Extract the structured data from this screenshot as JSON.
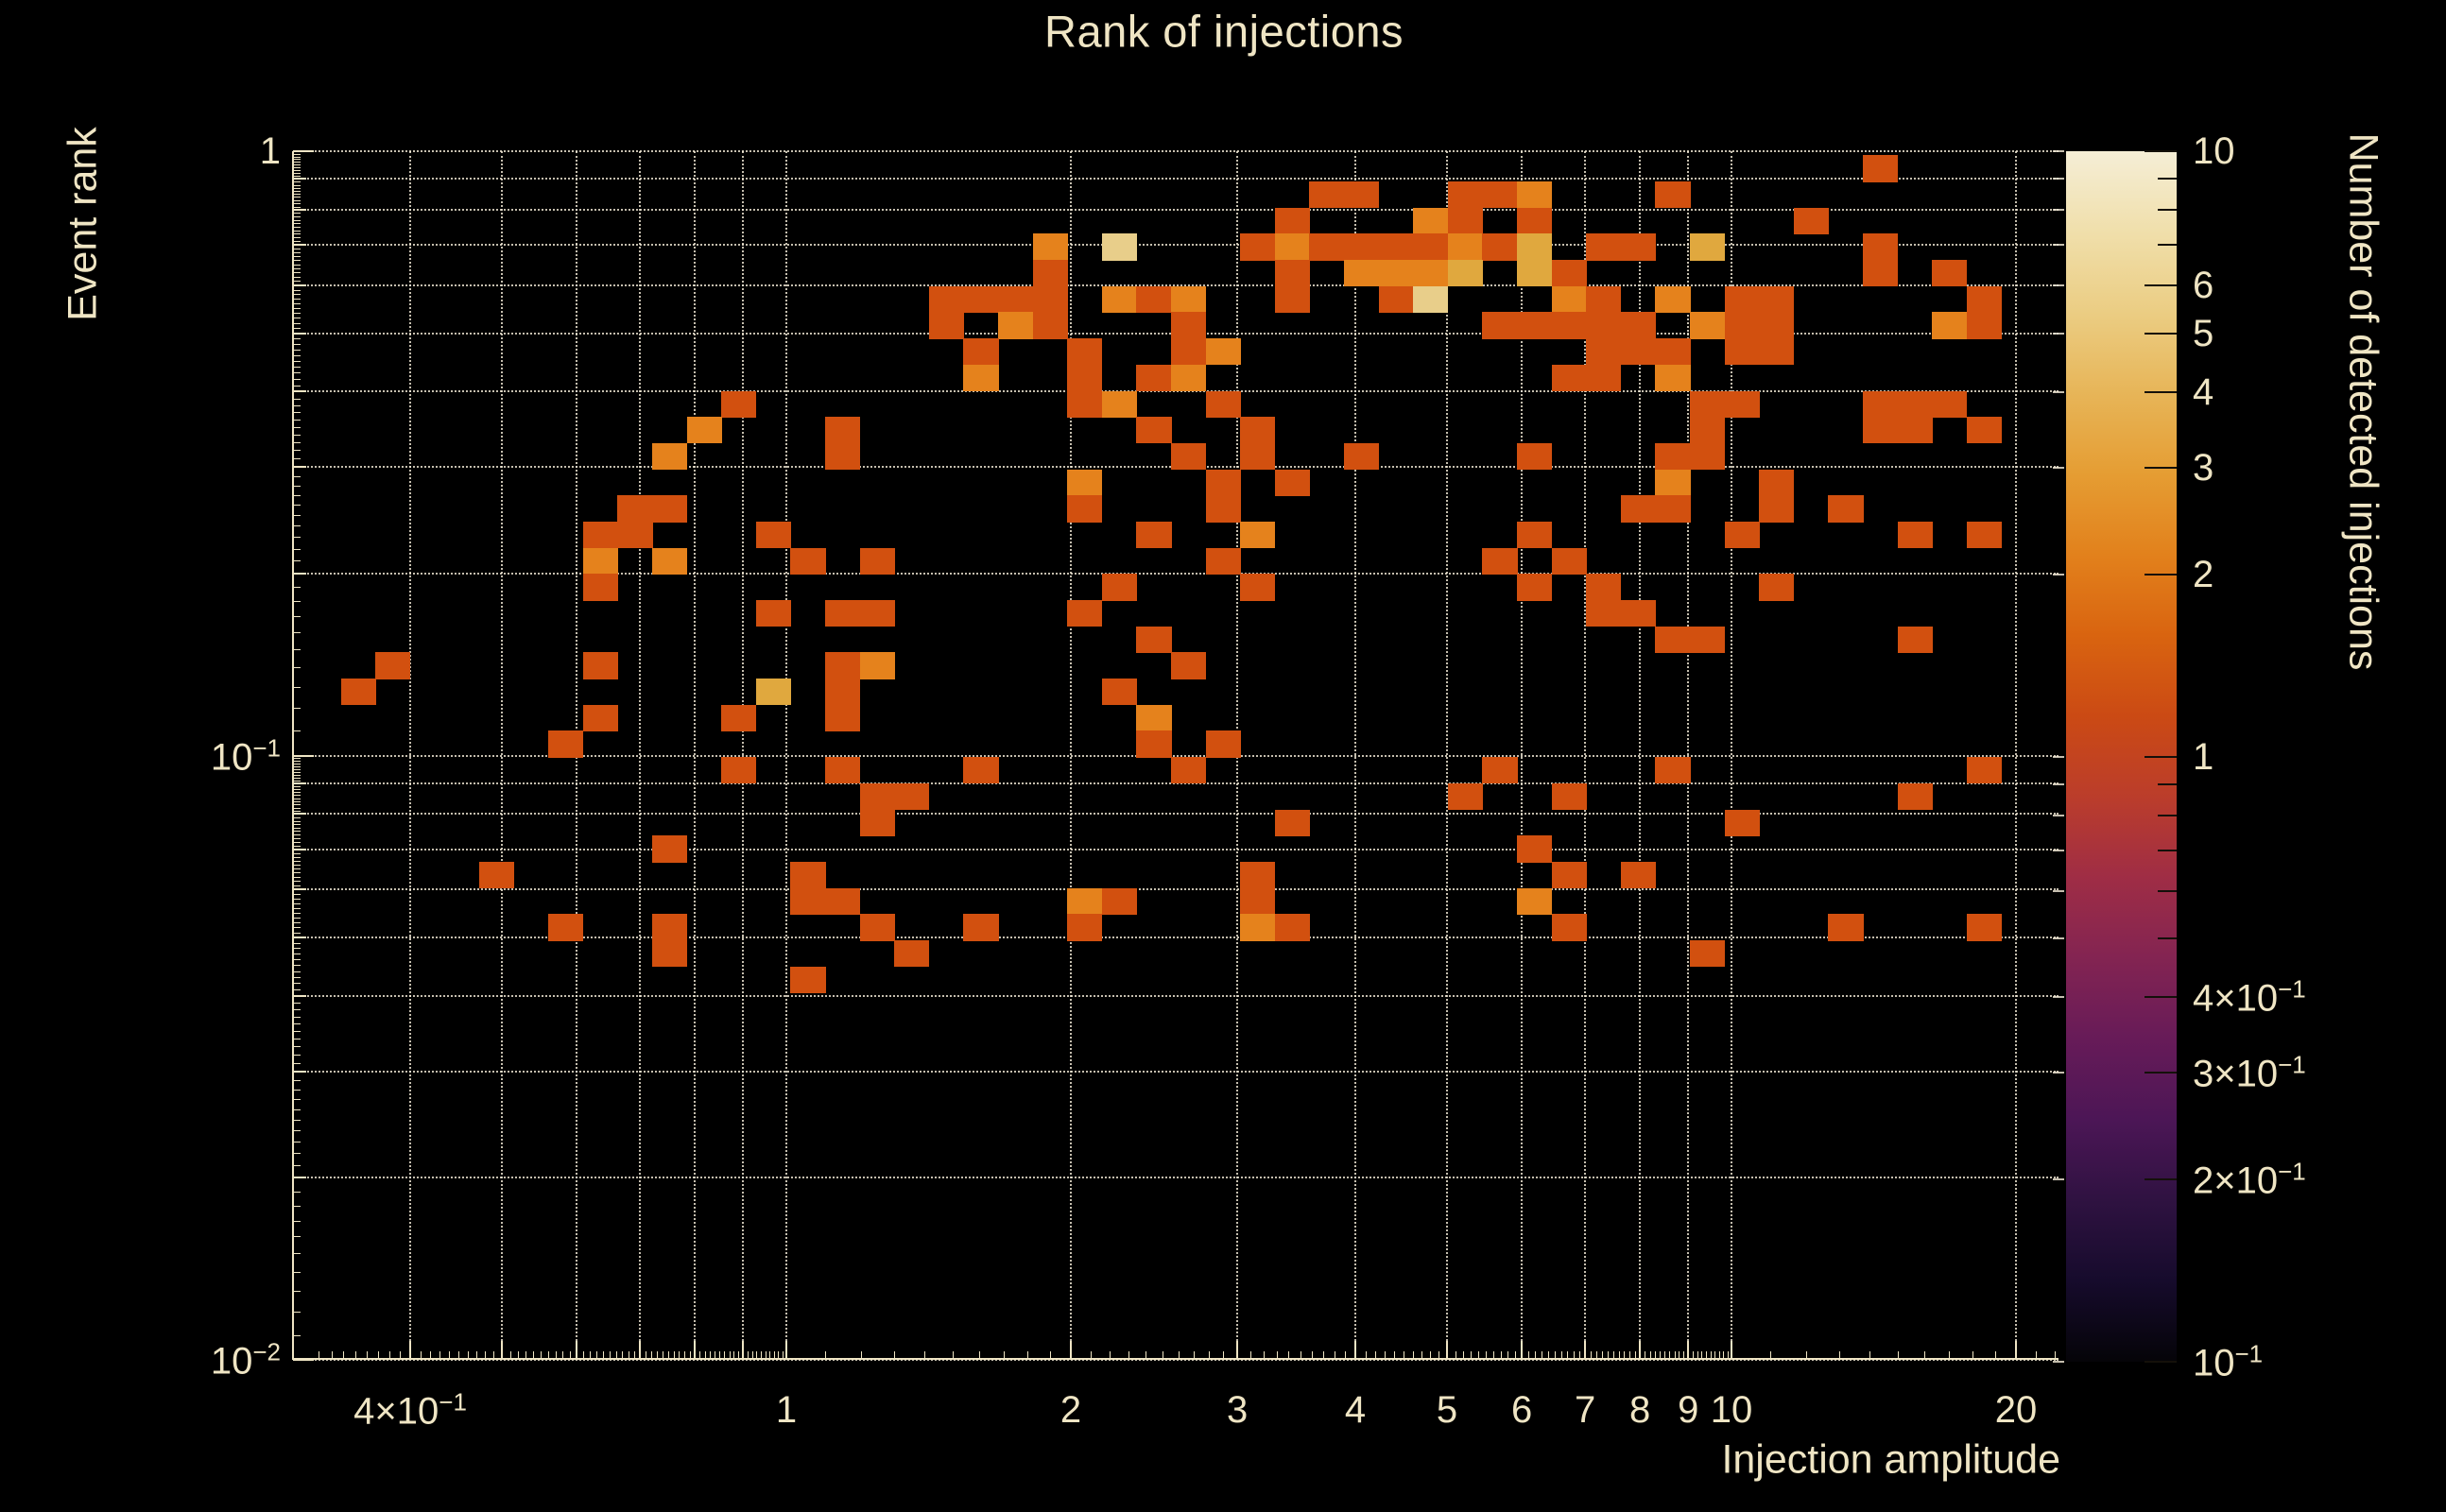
{
  "title": "Rank of injections",
  "x_axis_title": "Injection amplitude",
  "y_axis_title": "Event rank",
  "colorbar_title": "Number of detected injections",
  "colors": {
    "background": "#000000",
    "text": "#efe5c4",
    "gridline": "rgba(246,238,217,0.8)",
    "value_colors": {
      "1": "#d2500f",
      "2": "#e5821c",
      "3": "#e0a83e",
      "4": "#e8ce8a",
      "5": "#f0e2b0"
    },
    "colorbar_gradient_bottom_to_top": [
      "#050408",
      "#160b2c",
      "#2f1241",
      "#4c1656",
      "#671b58",
      "#832452",
      "#9f2d45",
      "#bb3d2b",
      "#cb4a14",
      "#d96410",
      "#e2811c",
      "#e59d33",
      "#e7b558",
      "#ebcd83",
      "#f0dfab",
      "#f5eed6"
    ]
  },
  "chart_data": {
    "type": "heatmap",
    "title": "Rank of injections",
    "xlabel": "Injection amplitude",
    "ylabel": "Event rank",
    "zlabel": "Number of detected injections",
    "x_scale": "log",
    "y_scale": "log",
    "z_scale": "log",
    "xlim": [
      0.3105,
      22.1
    ],
    "ylim": [
      0.01,
      1.0
    ],
    "zlim": [
      0.1,
      10
    ],
    "grid": "dotted",
    "binning": {
      "first_x_edge": 0.3105,
      "log10_bin_width_x": 0.0366,
      "first_y_edge_rank": 0.9846,
      "log10_bin_height_y": 0.0433,
      "n_cols": 51,
      "n_rows": 46,
      "note": "cells = [col,row,count]; col 0 at left (lowest amplitude), row 0 at top (rank~1). amp_left_edge = first_x_edge*10^(col*log10_bin_width_x); rank_top_edge = first_y_edge_rank*10^(-row*log10_bin_height_y)"
    },
    "x_ticks": [
      {
        "value": 0.4,
        "label": {
          "base": "4×10",
          "sup": "−1"
        }
      },
      {
        "value": 0.5
      },
      {
        "value": 0.6
      },
      {
        "value": 0.7
      },
      {
        "value": 0.8
      },
      {
        "value": 0.9
      },
      {
        "value": 1,
        "label": "1"
      },
      {
        "value": 2,
        "label": "2"
      },
      {
        "value": 3,
        "label": "3"
      },
      {
        "value": 4,
        "label": "4"
      },
      {
        "value": 5,
        "label": "5"
      },
      {
        "value": 6,
        "label": "6"
      },
      {
        "value": 7,
        "label": "7"
      },
      {
        "value": 8,
        "label": "8"
      },
      {
        "value": 9,
        "label": "9"
      },
      {
        "value": 10,
        "label": "10"
      },
      {
        "value": 20,
        "label": "20"
      }
    ],
    "y_ticks": [
      {
        "value": 1,
        "label": "1"
      },
      {
        "value": 0.9
      },
      {
        "value": 0.8
      },
      {
        "value": 0.7
      },
      {
        "value": 0.6
      },
      {
        "value": 0.5
      },
      {
        "value": 0.4
      },
      {
        "value": 0.3
      },
      {
        "value": 0.2
      },
      {
        "value": 0.1,
        "label": {
          "base": "10",
          "sup": "−1"
        }
      },
      {
        "value": 0.09
      },
      {
        "value": 0.08
      },
      {
        "value": 0.07
      },
      {
        "value": 0.06
      },
      {
        "value": 0.05
      },
      {
        "value": 0.04
      },
      {
        "value": 0.03
      },
      {
        "value": 0.02
      },
      {
        "value": 0.01,
        "label": {
          "base": "10",
          "sup": "−2"
        }
      }
    ],
    "colorbar_ticks": [
      {
        "value": 10,
        "label": "10"
      },
      {
        "value": 9
      },
      {
        "value": 8
      },
      {
        "value": 7
      },
      {
        "value": 6,
        "label": "6"
      },
      {
        "value": 5,
        "label": "5"
      },
      {
        "value": 4,
        "label": "4"
      },
      {
        "value": 3,
        "label": "3"
      },
      {
        "value": 2,
        "label": "2"
      },
      {
        "value": 1,
        "label": "1"
      },
      {
        "value": 0.9
      },
      {
        "value": 0.8
      },
      {
        "value": 0.7
      },
      {
        "value": 0.6
      },
      {
        "value": 0.5
      },
      {
        "value": 0.4,
        "label": {
          "base": "4×10",
          "sup": "−1"
        }
      },
      {
        "value": 0.3,
        "label": {
          "base": "3×10",
          "sup": "−1"
        }
      },
      {
        "value": 0.2,
        "label": {
          "base": "2×10",
          "sup": "−1"
        }
      },
      {
        "value": 0.1,
        "label": {
          "base": "10",
          "sup": "−1"
        }
      }
    ],
    "cells": [
      [
        45,
        0,
        1
      ],
      [
        29,
        1,
        1
      ],
      [
        30,
        1,
        1
      ],
      [
        33,
        1,
        1
      ],
      [
        34,
        1,
        1
      ],
      [
        35,
        1,
        2
      ],
      [
        39,
        1,
        1
      ],
      [
        28,
        2,
        1
      ],
      [
        32,
        2,
        2
      ],
      [
        33,
        2,
        1
      ],
      [
        35,
        2,
        1
      ],
      [
        43,
        2,
        1
      ],
      [
        21,
        3,
        2
      ],
      [
        23,
        3,
        4
      ],
      [
        27,
        3,
        1
      ],
      [
        28,
        3,
        2
      ],
      [
        29,
        3,
        1
      ],
      [
        30,
        3,
        1
      ],
      [
        31,
        3,
        1
      ],
      [
        32,
        3,
        1
      ],
      [
        33,
        3,
        2
      ],
      [
        34,
        3,
        1
      ],
      [
        35,
        3,
        3
      ],
      [
        37,
        3,
        1
      ],
      [
        38,
        3,
        1
      ],
      [
        40,
        3,
        3
      ],
      [
        45,
        3,
        1
      ],
      [
        21,
        4,
        1
      ],
      [
        28,
        4,
        1
      ],
      [
        30,
        4,
        2
      ],
      [
        31,
        4,
        2
      ],
      [
        32,
        4,
        2
      ],
      [
        33,
        4,
        3
      ],
      [
        35,
        4,
        3
      ],
      [
        36,
        4,
        1
      ],
      [
        45,
        4,
        1
      ],
      [
        47,
        4,
        1
      ],
      [
        18,
        5,
        1
      ],
      [
        19,
        5,
        1
      ],
      [
        20,
        5,
        1
      ],
      [
        21,
        5,
        1
      ],
      [
        23,
        5,
        2
      ],
      [
        24,
        5,
        1
      ],
      [
        25,
        5,
        2
      ],
      [
        28,
        5,
        1
      ],
      [
        31,
        5,
        1
      ],
      [
        32,
        5,
        4
      ],
      [
        36,
        5,
        2
      ],
      [
        37,
        5,
        1
      ],
      [
        39,
        5,
        2
      ],
      [
        41,
        5,
        1
      ],
      [
        42,
        5,
        1
      ],
      [
        48,
        5,
        1
      ],
      [
        18,
        6,
        1
      ],
      [
        20,
        6,
        2
      ],
      [
        21,
        6,
        1
      ],
      [
        25,
        6,
        1
      ],
      [
        34,
        6,
        1
      ],
      [
        35,
        6,
        1
      ],
      [
        36,
        6,
        1
      ],
      [
        37,
        6,
        1
      ],
      [
        38,
        6,
        1
      ],
      [
        40,
        6,
        2
      ],
      [
        41,
        6,
        1
      ],
      [
        42,
        6,
        1
      ],
      [
        47,
        6,
        2
      ],
      [
        48,
        6,
        1
      ],
      [
        19,
        7,
        1
      ],
      [
        22,
        7,
        1
      ],
      [
        25,
        7,
        1
      ],
      [
        26,
        7,
        2
      ],
      [
        37,
        7,
        1
      ],
      [
        38,
        7,
        1
      ],
      [
        39,
        7,
        1
      ],
      [
        41,
        7,
        1
      ],
      [
        42,
        7,
        1
      ],
      [
        19,
        8,
        2
      ],
      [
        22,
        8,
        1
      ],
      [
        24,
        8,
        1
      ],
      [
        25,
        8,
        2
      ],
      [
        36,
        8,
        1
      ],
      [
        37,
        8,
        1
      ],
      [
        39,
        8,
        2
      ],
      [
        12,
        9,
        1
      ],
      [
        22,
        9,
        1
      ],
      [
        23,
        9,
        2
      ],
      [
        26,
        9,
        1
      ],
      [
        40,
        9,
        1
      ],
      [
        41,
        9,
        1
      ],
      [
        45,
        9,
        1
      ],
      [
        46,
        9,
        1
      ],
      [
        47,
        9,
        1
      ],
      [
        11,
        10,
        2
      ],
      [
        15,
        10,
        1
      ],
      [
        24,
        10,
        1
      ],
      [
        27,
        10,
        1
      ],
      [
        40,
        10,
        1
      ],
      [
        45,
        10,
        1
      ],
      [
        46,
        10,
        1
      ],
      [
        48,
        10,
        1
      ],
      [
        10,
        11,
        2
      ],
      [
        15,
        11,
        1
      ],
      [
        25,
        11,
        1
      ],
      [
        27,
        11,
        1
      ],
      [
        30,
        11,
        1
      ],
      [
        35,
        11,
        1
      ],
      [
        39,
        11,
        1
      ],
      [
        40,
        11,
        1
      ],
      [
        22,
        12,
        2
      ],
      [
        26,
        12,
        1
      ],
      [
        28,
        12,
        1
      ],
      [
        39,
        12,
        2
      ],
      [
        42,
        12,
        1
      ],
      [
        9,
        13,
        1
      ],
      [
        10,
        13,
        1
      ],
      [
        22,
        13,
        1
      ],
      [
        26,
        13,
        1
      ],
      [
        38,
        13,
        1
      ],
      [
        39,
        13,
        1
      ],
      [
        42,
        13,
        1
      ],
      [
        44,
        13,
        1
      ],
      [
        8,
        14,
        1
      ],
      [
        9,
        14,
        1
      ],
      [
        13,
        14,
        1
      ],
      [
        24,
        14,
        1
      ],
      [
        27,
        14,
        2
      ],
      [
        35,
        14,
        1
      ],
      [
        41,
        14,
        1
      ],
      [
        46,
        14,
        1
      ],
      [
        48,
        14,
        1
      ],
      [
        8,
        15,
        2
      ],
      [
        10,
        15,
        2
      ],
      [
        14,
        15,
        1
      ],
      [
        16,
        15,
        1
      ],
      [
        26,
        15,
        1
      ],
      [
        34,
        15,
        1
      ],
      [
        36,
        15,
        1
      ],
      [
        8,
        16,
        1
      ],
      [
        23,
        16,
        1
      ],
      [
        27,
        16,
        1
      ],
      [
        35,
        16,
        1
      ],
      [
        37,
        16,
        1
      ],
      [
        42,
        16,
        1
      ],
      [
        13,
        17,
        1
      ],
      [
        15,
        17,
        1
      ],
      [
        16,
        17,
        1
      ],
      [
        22,
        17,
        1
      ],
      [
        37,
        17,
        1
      ],
      [
        38,
        17,
        1
      ],
      [
        24,
        18,
        1
      ],
      [
        39,
        18,
        1
      ],
      [
        40,
        18,
        1
      ],
      [
        46,
        18,
        1
      ],
      [
        2,
        19,
        1
      ],
      [
        8,
        19,
        1
      ],
      [
        15,
        19,
        1
      ],
      [
        16,
        19,
        2
      ],
      [
        25,
        19,
        1
      ],
      [
        1,
        20,
        1
      ],
      [
        13,
        20,
        3
      ],
      [
        15,
        20,
        1
      ],
      [
        23,
        20,
        1
      ],
      [
        8,
        21,
        1
      ],
      [
        12,
        21,
        1
      ],
      [
        15,
        21,
        1
      ],
      [
        24,
        21,
        2
      ],
      [
        7,
        22,
        1
      ],
      [
        24,
        22,
        1
      ],
      [
        26,
        22,
        1
      ],
      [
        12,
        23,
        1
      ],
      [
        15,
        23,
        1
      ],
      [
        19,
        23,
        1
      ],
      [
        25,
        23,
        1
      ],
      [
        34,
        23,
        1
      ],
      [
        39,
        23,
        1
      ],
      [
        48,
        23,
        1
      ],
      [
        16,
        24,
        1
      ],
      [
        17,
        24,
        1
      ],
      [
        33,
        24,
        1
      ],
      [
        36,
        24,
        1
      ],
      [
        46,
        24,
        1
      ],
      [
        16,
        25,
        1
      ],
      [
        28,
        25,
        1
      ],
      [
        41,
        25,
        1
      ],
      [
        10,
        26,
        1
      ],
      [
        35,
        26,
        1
      ],
      [
        5,
        27,
        1
      ],
      [
        14,
        27,
        1
      ],
      [
        27,
        27,
        1
      ],
      [
        36,
        27,
        1
      ],
      [
        38,
        27,
        1
      ],
      [
        14,
        28,
        1
      ],
      [
        15,
        28,
        1
      ],
      [
        22,
        28,
        2
      ],
      [
        23,
        28,
        1
      ],
      [
        27,
        28,
        1
      ],
      [
        35,
        28,
        2
      ],
      [
        7,
        29,
        1
      ],
      [
        10,
        29,
        1
      ],
      [
        16,
        29,
        1
      ],
      [
        19,
        29,
        1
      ],
      [
        22,
        29,
        1
      ],
      [
        27,
        29,
        2
      ],
      [
        28,
        29,
        1
      ],
      [
        36,
        29,
        1
      ],
      [
        44,
        29,
        1
      ],
      [
        48,
        29,
        1
      ],
      [
        10,
        30,
        1
      ],
      [
        17,
        30,
        1
      ],
      [
        40,
        30,
        1
      ],
      [
        14,
        31,
        1
      ]
    ]
  }
}
